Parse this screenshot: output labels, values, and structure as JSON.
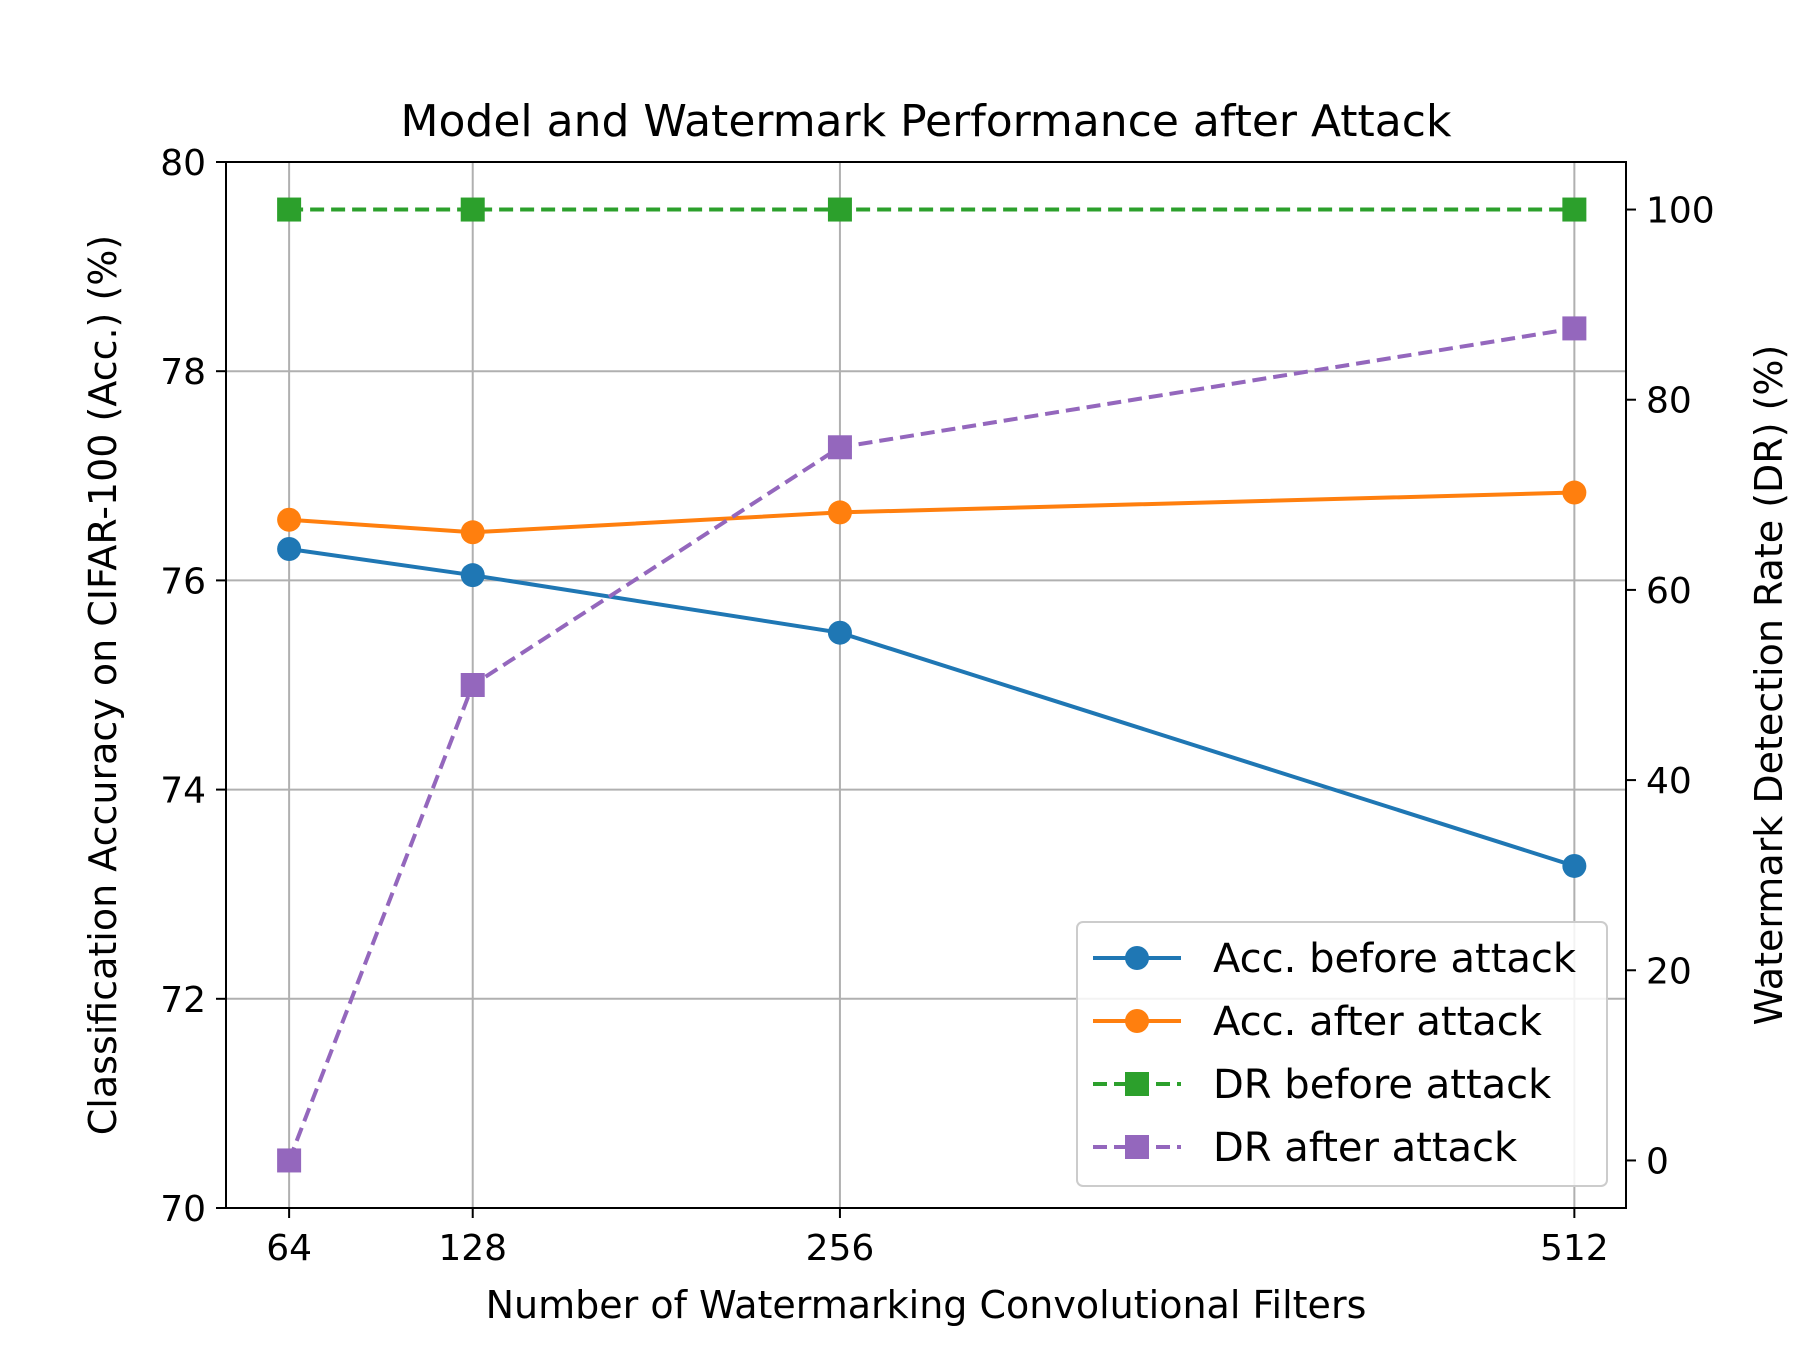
{
  "chart_data": {
    "type": "line",
    "title": "Model and Watermark Performance after Attack",
    "xlabel": "Number of Watermarking Convolutional Filters",
    "ylabel_left": "Classification Accuracy on CIFAR-100 (Acc.) (%)",
    "ylabel_right": "Watermark Detection Rate (DR) (%)",
    "x": [
      64,
      128,
      256,
      512
    ],
    "x_ticks": [
      "64",
      "128",
      "256",
      "512"
    ],
    "xlim": [
      42,
      530
    ],
    "ylim_left": [
      70,
      80
    ],
    "yticks_left": [
      "70",
      "72",
      "74",
      "76",
      "78",
      "80"
    ],
    "ylim_right": [
      -5,
      105
    ],
    "yticks_right": [
      "0",
      "20",
      "40",
      "60",
      "80",
      "100"
    ],
    "grid": true,
    "legend_position": "lower-right",
    "series": [
      {
        "name": "Acc. before attack",
        "axis": "left",
        "values": [
          76.3,
          76.05,
          75.5,
          73.27
        ],
        "color": "#1f77b4",
        "marker": "circle",
        "linestyle": "solid"
      },
      {
        "name": "Acc. after attack",
        "axis": "left",
        "values": [
          76.58,
          76.46,
          76.65,
          76.84
        ],
        "color": "#ff7f0e",
        "marker": "circle",
        "linestyle": "solid"
      },
      {
        "name": "DR before attack",
        "axis": "right",
        "values": [
          100,
          100,
          100,
          100
        ],
        "color": "#2ca02c",
        "marker": "square",
        "linestyle": "dashed"
      },
      {
        "name": "DR after attack",
        "axis": "right",
        "values": [
          0,
          50,
          75,
          87.5
        ],
        "color": "#9467bd",
        "marker": "square",
        "linestyle": "dashed"
      }
    ]
  }
}
